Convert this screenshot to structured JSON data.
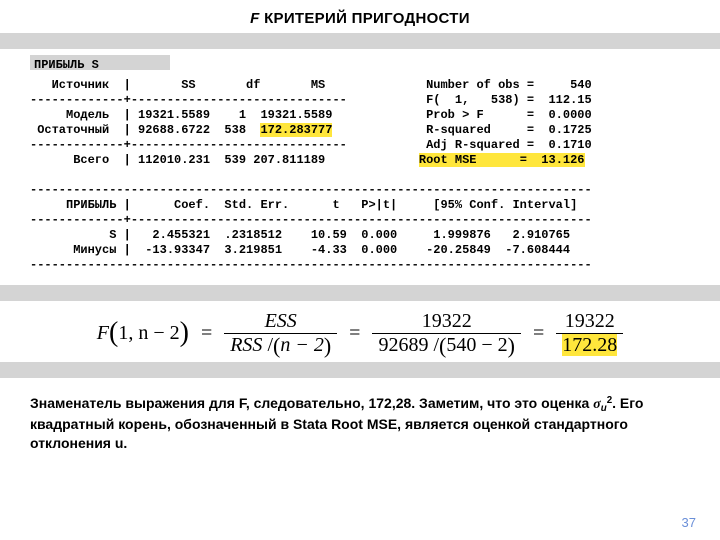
{
  "title": {
    "F": "F",
    "rest": " КРИТЕРИЙ ПРИГОДНОСТИ"
  },
  "strip_label": "ПРИБЫЛЬ  S",
  "stata": {
    "header": "   Источник  |       SS       df       MS              Number of obs =     540",
    "div1": "-------------+------------------------------           F(  1,   538) =  112.15",
    "model": "     Модель  | 19321.5589    1  19321.5589             Prob > F      =  0.0000",
    "resid_a": " Остаточный  | 92688.6722  538  ",
    "resid_ms": "172.283777",
    "resid_b": "             R-squared     =  0.1725",
    "div2": "-------------+------------------------------           Adj R-squared =  0.1710",
    "total_a": "      Всего  | 112010.231  539 207.811189             ",
    "root_mse": "Root MSE      =  13.126",
    "longdiv": "------------------------------------------------------------------------------",
    "coefh": "     ПРИБЫЛЬ |      Coef.  Std. Err.      t   P>|t|     [95% Conf. Interval]",
    "longdiv2": "-------------+----------------------------------------------------------------",
    "s_row": "           S |   2.455321  .2318512    10.59  0.000     1.999876   2.910765",
    "m_row": "      Минусы |  -13.93347  3.219851    -4.33  0.000    -20.25849  -7.608444",
    "longdiv3": "------------------------------------------------------------------------------"
  },
  "formula": {
    "lhs_F": "F",
    "lhs_args": "1, n − 2",
    "eq": "=",
    "f1_num": "ESS",
    "f1_den_a": "RSS",
    "f1_den_b": "n − 2",
    "f2_num": "19322",
    "f2_den_left": "92689",
    "f2_den_right": "540 − 2",
    "f3_num": "19322",
    "f3_den": "172.28"
  },
  "explain": {
    "a": "Знаменатель выражения для F, следовательно, 172,28. Заметим, что это оценка ",
    "sigma": "σ",
    "sub": "u",
    "sq": "2",
    "b": ". Его квадратный корень, обозначенный в Stata Root MSE, является оценкой стандартного отклонения u."
  },
  "page": "37",
  "colors": {
    "highlight": "#ffe63c",
    "strip": "#d4d4d4",
    "pagenum": "#6a8fd8"
  }
}
